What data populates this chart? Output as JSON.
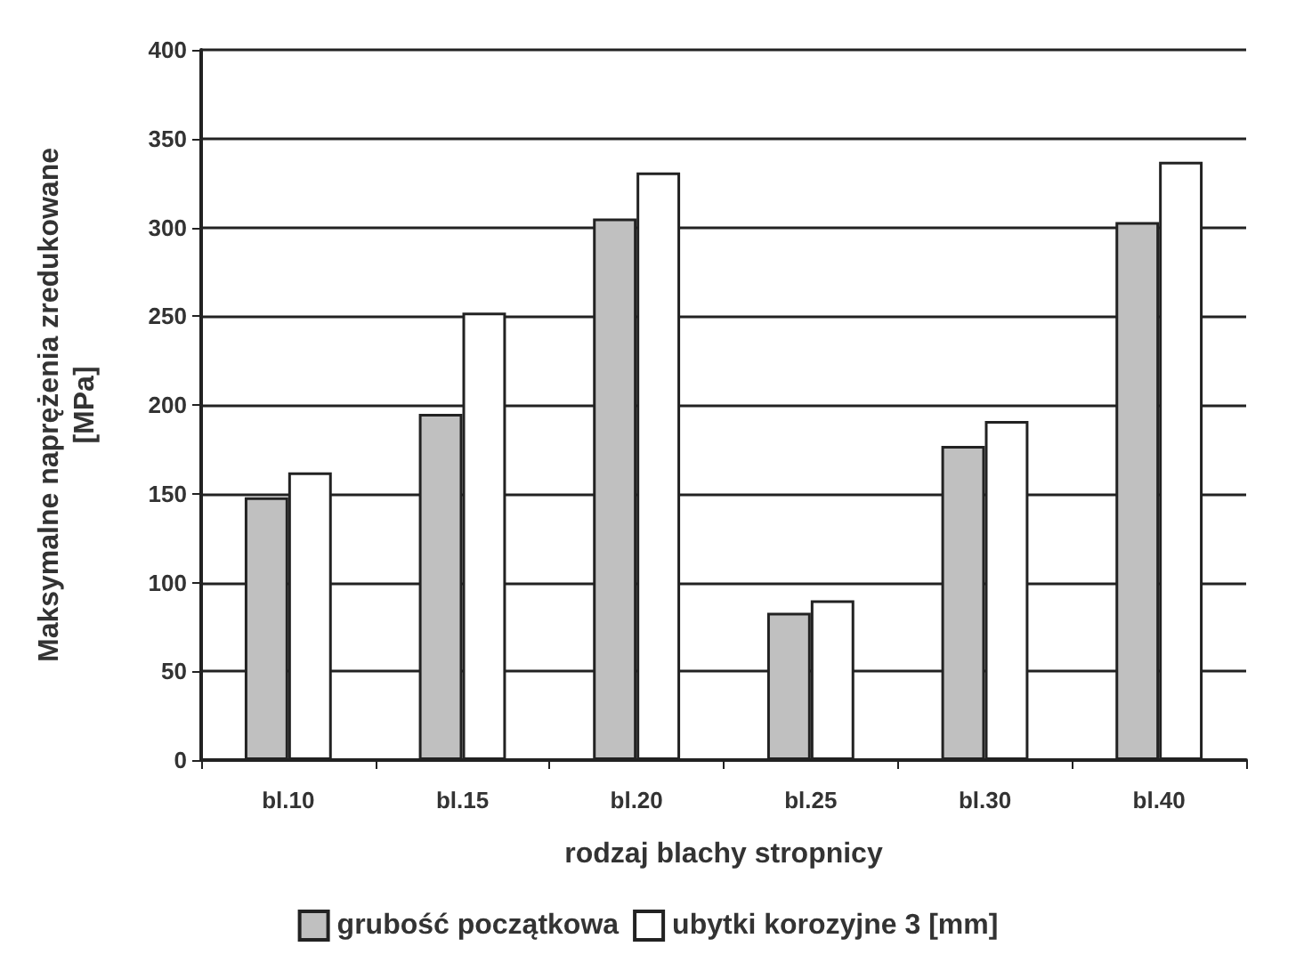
{
  "chart_data": {
    "type": "bar",
    "xlabel": "rodzaj blachy stropnicy",
    "ylabel": "Maksymalne naprężenia zredukowane\n[MPa]",
    "categories": [
      "bl.10",
      "bl.15",
      "bl.20",
      "bl.25",
      "bl.30",
      "bl.40"
    ],
    "series": [
      {
        "name": "grubość początkowa",
        "color": "#c0c0c0",
        "values": [
          148,
          195,
          305,
          83,
          177,
          303
        ]
      },
      {
        "name": "ubytki korozyjne 3 [mm]",
        "color": "#ffffff",
        "values": [
          162,
          252,
          331,
          90,
          191,
          337
        ]
      }
    ],
    "ylim": [
      0,
      400
    ],
    "yticks": [
      0,
      50,
      100,
      150,
      200,
      250,
      300,
      350,
      400
    ],
    "grid": "y",
    "legend": "bottom"
  }
}
